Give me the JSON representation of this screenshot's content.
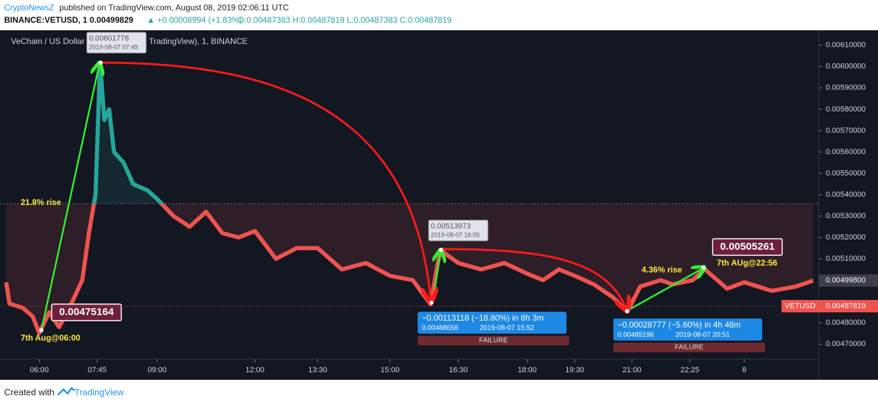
{
  "header": {
    "author": "CryptoNewsZ",
    "published": "published on TradingView.com, August 08, 2019 02:06:11 UTC",
    "symbol_line": "BINANCE:VETUSD, 1  0.00499829",
    "change": "▲ +0.00008994 (+1.83%)",
    "ohlc": "O:0.00487383 H:0.00487819 L:0.00487383 C:0.00487819"
  },
  "footer": {
    "created": "Created with",
    "brand": "TradingView"
  },
  "chart_data": {
    "type": "baseline",
    "legend_left": "VeChain / US Dollar",
    "legend_right": "TradingView), 1, BINANCE",
    "up_color": "#26a69a",
    "down_color": "#ef5350",
    "baseline": 0.005358,
    "x": [
      5.0,
      5.1,
      5.5,
      5.8,
      6.0,
      6.3,
      6.6,
      7.0,
      7.3,
      7.5,
      7.7,
      7.81,
      7.9,
      8.0,
      8.1,
      8.3,
      8.5,
      8.8,
      9.0,
      9.5,
      10.0,
      10.5,
      11.0,
      11.5,
      12.0,
      12.5,
      13.0,
      13.5,
      14.0,
      14.5,
      15.0,
      15.5,
      15.89,
      16.05,
      16.11,
      16.5,
      17.0,
      17.5,
      18.0,
      18.5,
      19.0,
      19.5,
      20.0,
      20.5,
      20.88,
      21.2,
      21.7,
      22.0,
      22.5,
      22.84,
      23.5,
      24.0,
      24.8,
      25.5,
      26.0
    ],
    "values": [
      0.00499,
      0.00489,
      0.00487,
      0.00483,
      0.004752,
      0.00485,
      0.00478,
      0.0049,
      0.005,
      0.00522,
      0.0054,
      0.006018,
      0.00575,
      0.0058,
      0.0056,
      0.00555,
      0.00545,
      0.00542,
      0.00538,
      0.0053,
      0.00525,
      0.00532,
      0.00522,
      0.0052,
      0.00523,
      0.0051,
      0.00515,
      0.00515,
      0.00505,
      0.00508,
      0.00502,
      0.005,
      0.004887,
      0.00508,
      0.00514,
      0.00508,
      0.00505,
      0.00508,
      0.00503,
      0.005,
      0.00505,
      0.00502,
      0.00498,
      0.00492,
      0.004852,
      0.00497,
      0.005,
      0.00498,
      0.005,
      0.005052,
      0.00496,
      0.00499,
      0.00495,
      0.00497,
      0.004998
    ],
    "xlim": [
      4.98,
      26.16
    ],
    "xticks": [
      {
        "value": 6,
        "label": "06:00"
      },
      {
        "value": 7.75,
        "label": "07:45"
      },
      {
        "value": 9,
        "label": "09:00"
      },
      {
        "value": 12,
        "label": "12:00"
      },
      {
        "value": 13.5,
        "label": "13:30"
      },
      {
        "value": 15,
        "label": "15:00"
      },
      {
        "value": 16.5,
        "label": "16:30"
      },
      {
        "value": 18,
        "label": "18:00"
      },
      {
        "value": 19.5,
        "label": "19:30"
      },
      {
        "value": 21,
        "label": "21:00"
      },
      {
        "value": 22.4167,
        "label": "22:25"
      },
      {
        "value": 24,
        "label": "8"
      }
    ],
    "ylim": [
      0.00463,
      0.00617
    ],
    "yticks": [
      {
        "value": 0.0061,
        "label": "0.00610000"
      },
      {
        "value": 0.006,
        "label": "0.00600000"
      },
      {
        "value": 0.0059,
        "label": "0.00590000"
      },
      {
        "value": 0.0058,
        "label": "0.00580000"
      },
      {
        "value": 0.0057,
        "label": "0.00570000"
      },
      {
        "value": 0.0056,
        "label": "0.00560000"
      },
      {
        "value": 0.0055,
        "label": "0.00550000"
      },
      {
        "value": 0.0054,
        "label": "0.00540000"
      },
      {
        "value": 0.0053,
        "label": "0.00530000"
      },
      {
        "value": 0.0052,
        "label": "0.00520000"
      },
      {
        "value": 0.0051,
        "label": "0.00510000"
      },
      {
        "value": 0.0048,
        "label": "0.00480000"
      },
      {
        "value": 0.0047,
        "label": "0.00470000"
      }
    ],
    "price_labels": [
      {
        "value": 0.004998,
        "label": "0.00499800"
      },
      {
        "value": 0.00487819,
        "label": "0.00487819",
        "name": "VETUSD"
      }
    ],
    "annotations": {
      "peak_price": "0.00601776",
      "peak_time": "2019-08-07 07:49",
      "mid_price": "0.00513973",
      "mid_time": "2019-08-07 16:05",
      "start_price": "0.00475164",
      "start_time": "7th Aug@06:00",
      "end_price": "0.00505261",
      "end_time": "7th AUg@22:56",
      "rise1": "21.8% rise",
      "rise2": "4.36% rise",
      "measure1": {
        "change": "−0.00113118 (−18.80%) in 8h 3m",
        "price": "0.00488658",
        "time": "2019-08-07  15:52",
        "status": "FAILURE"
      },
      "measure2": {
        "change": "−0.00028777 (−5.60%) in 4h 46m",
        "price": "0.00485196",
        "time": "2019-08-07  20:51",
        "status": "FAILURE"
      }
    }
  }
}
